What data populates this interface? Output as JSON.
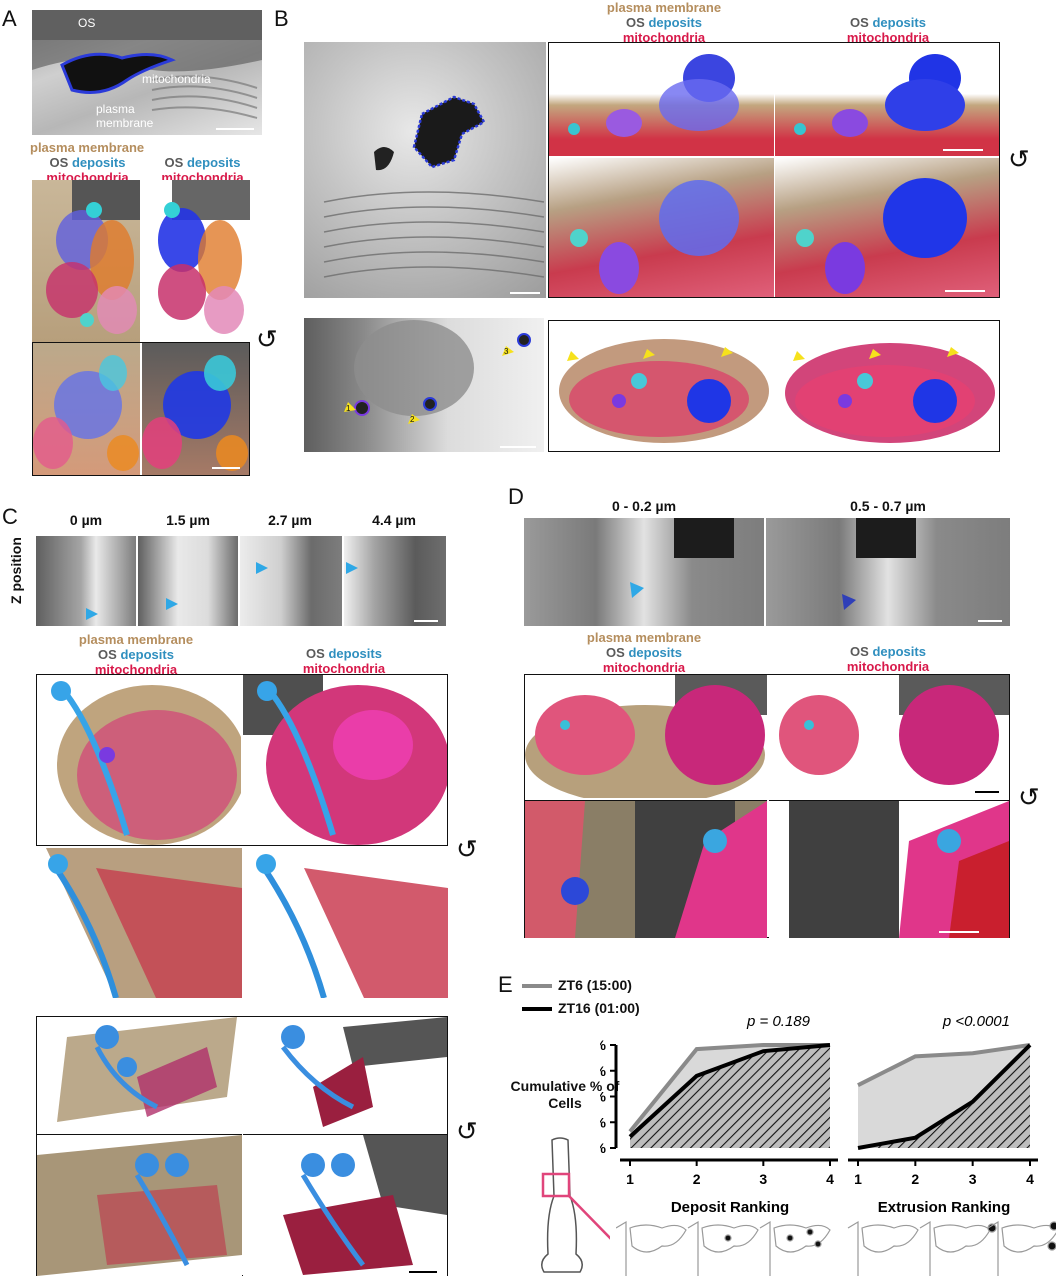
{
  "panels": {
    "A": {
      "letter": "A",
      "em_labels": {
        "os": "OS",
        "mitochondria": "mitochondria",
        "plasma_membrane": "plasma\nmembrane"
      }
    },
    "B": {
      "letter": "B",
      "arrow_numbers": [
        "1",
        "2",
        "3"
      ]
    },
    "C": {
      "letter": "C",
      "z_axis_label": "Z position",
      "z_positions": [
        "0 µm",
        "1.5 µm",
        "2.7 µm",
        "4.4 µm"
      ]
    },
    "D": {
      "letter": "D",
      "z_ranges": [
        "0 - 0.2 µm",
        "0.5 - 0.7 µm"
      ]
    },
    "E": {
      "letter": "E"
    }
  },
  "legend": {
    "plasma_membrane": "plasma membrane",
    "os": "OS",
    "deposits": "deposits",
    "mitochondria": "mitochondria"
  },
  "colors": {
    "plasma_membrane": "#b58e5e",
    "os": "#5a5a5a",
    "deposits": "#2f8fbf",
    "mitochondria": "#d8194a",
    "zt6_line": "#8a8a8a",
    "zt16_line": "#000000",
    "fill_gray": "#d9d9d9",
    "sketch_red": "#e0457b"
  },
  "chart_data": [
    {
      "type": "line",
      "title": "",
      "xlabel": "Deposit Ranking",
      "ylabel": "Cumulative % of Cells",
      "x": [
        1,
        2,
        3,
        4
      ],
      "xticks": [
        "1",
        "2",
        "3",
        "4"
      ],
      "yticks": [
        "0%",
        "25%",
        "50%",
        "75%",
        "100%"
      ],
      "ylim": [
        0,
        100
      ],
      "annotation": "p = 0.189",
      "series": [
        {
          "name": "ZT6 (15:00)",
          "values": [
            16,
            96,
            100,
            100
          ]
        },
        {
          "name": "ZT16 (01:00)",
          "values": [
            11,
            70,
            94,
            100
          ]
        }
      ]
    },
    {
      "type": "line",
      "title": "",
      "xlabel": "Extrusion Ranking",
      "ylabel": "",
      "x": [
        1,
        2,
        3,
        4
      ],
      "xticks": [
        "1",
        "2",
        "3",
        "4"
      ],
      "ylim": [
        0,
        100
      ],
      "annotation": "p <0.0001",
      "series": [
        {
          "name": "ZT6 (15:00)",
          "values": [
            61,
            89,
            92,
            100
          ]
        },
        {
          "name": "ZT16 (01:00)",
          "values": [
            0,
            10,
            45,
            100
          ]
        }
      ]
    }
  ],
  "chart_legend": [
    {
      "label": "ZT6 (15:00)",
      "color": "#8a8a8a"
    },
    {
      "label": "ZT16 (01:00)",
      "color": "#000000"
    }
  ]
}
